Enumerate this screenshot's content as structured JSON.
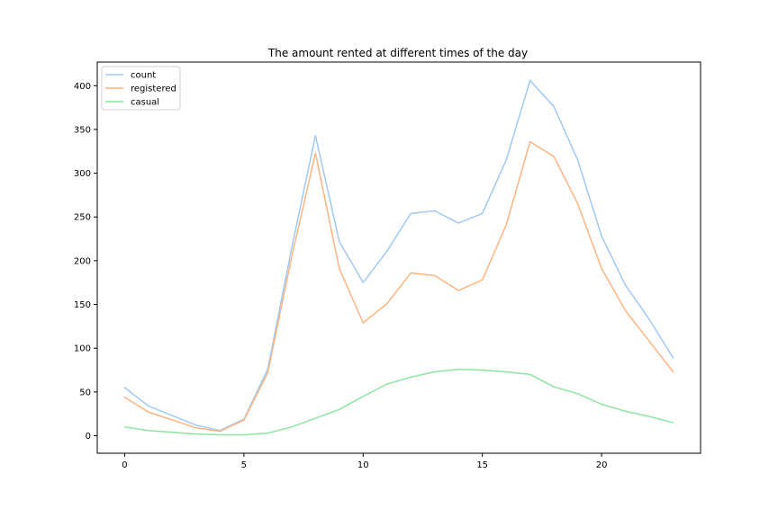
{
  "chart_data": {
    "type": "line",
    "title": "The amount rented at different times of the day",
    "xlabel": "",
    "ylabel": "",
    "xlim": [
      -1.15,
      24.15
    ],
    "ylim": [
      -20,
      427
    ],
    "xticks": [
      0,
      5,
      10,
      15,
      20
    ],
    "yticks": [
      0,
      50,
      100,
      150,
      200,
      250,
      300,
      350,
      400
    ],
    "grid": false,
    "legend": "top-left",
    "x": [
      0,
      1,
      2,
      3,
      4,
      5,
      6,
      7,
      8,
      9,
      10,
      11,
      12,
      13,
      14,
      15,
      16,
      17,
      18,
      19,
      20,
      21,
      22,
      23
    ],
    "series": [
      {
        "name": "count",
        "color": "#a1c9f4",
        "values": [
          55,
          34,
          23,
          12,
          6,
          19,
          76,
          214,
          343,
          222,
          175,
          211,
          254,
          257,
          243,
          254,
          315,
          406,
          376,
          315,
          228,
          172,
          133,
          89
        ]
      },
      {
        "name": "registered",
        "color": "#ffb482",
        "values": [
          44,
          27,
          18,
          9,
          5,
          18,
          72,
          204,
          323,
          191,
          129,
          151,
          186,
          183,
          166,
          178,
          241,
          336,
          319,
          265,
          191,
          143,
          108,
          73
        ]
      },
      {
        "name": "casual",
        "color": "#8de5a1",
        "values": [
          10,
          6,
          4,
          2,
          1,
          1,
          3,
          10,
          20,
          30,
          45,
          59,
          67,
          73,
          76,
          75,
          73,
          70,
          56,
          48,
          36,
          28,
          22,
          15
        ]
      }
    ]
  }
}
